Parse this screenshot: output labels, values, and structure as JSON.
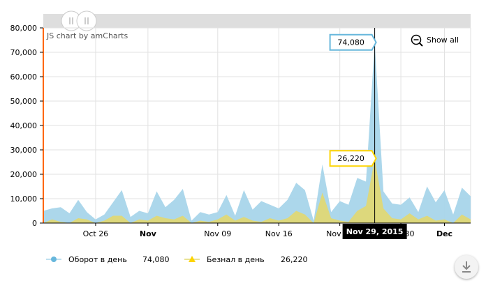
{
  "chart_data": {
    "type": "area",
    "credit": "JS chart by amCharts",
    "show_all_label": "Show all",
    "y_ticks": [
      "0",
      "10,000",
      "20,000",
      "30,000",
      "40,000",
      "50,000",
      "60,000",
      "70,000",
      "80,000"
    ],
    "ylim": [
      0,
      80000
    ],
    "x_ticks": [
      {
        "label": "Oct 26",
        "bold": false
      },
      {
        "label": "Nov",
        "bold": true
      },
      {
        "label": "Nov 09",
        "bold": false
      },
      {
        "label": "Nov 16",
        "bold": false
      },
      {
        "label": "Nov 23",
        "bold": false
      },
      {
        "label": "Nov 30",
        "bold": false
      },
      {
        "label": "Dec",
        "bold": true
      }
    ],
    "x_start": "Oct 20, 2015",
    "x_end": "Dec 05, 2015",
    "cursor_label": "Nov 29, 2015",
    "series": [
      {
        "name": "Оборот в день",
        "color": "#a8d5ea",
        "marker": "circle",
        "marker_color": "#67b7dc",
        "legend_value": "74,080",
        "balloon_value": "74,080",
        "values": [
          5000,
          6000,
          6500,
          4000,
          9500,
          4500,
          1500,
          3500,
          8500,
          13500,
          2500,
          5000,
          4000,
          13000,
          6500,
          9500,
          14000,
          1000,
          4500,
          3500,
          4500,
          11500,
          3000,
          13500,
          5500,
          9000,
          7500,
          6000,
          9500,
          16500,
          13500,
          1000,
          24000,
          4500,
          9000,
          7500,
          18500,
          17000,
          74080,
          13000,
          8000,
          7500,
          10500,
          4500,
          15000,
          8500,
          13500,
          3500,
          14500,
          11000
        ]
      },
      {
        "name": "Безнал в день",
        "color": "#e2d870",
        "marker": "triangle",
        "marker_color": "#fdd400",
        "legend_value": "26,220",
        "balloon_value": "26,220",
        "values": [
          0,
          1500,
          500,
          0,
          2000,
          1500,
          0,
          1000,
          3000,
          3000,
          0,
          1500,
          1000,
          3000,
          2000,
          1500,
          3000,
          0,
          1000,
          500,
          1500,
          3500,
          1000,
          2500,
          1000,
          500,
          2000,
          1000,
          2000,
          5000,
          3500,
          0,
          12500,
          2000,
          1000,
          500,
          5000,
          7000,
          26220,
          6000,
          2000,
          1500,
          4000,
          1500,
          3000,
          1000,
          1500,
          0,
          3500,
          1500
        ]
      }
    ],
    "grid": true
  }
}
